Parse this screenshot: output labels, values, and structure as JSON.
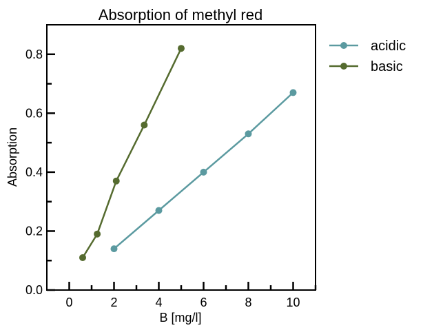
{
  "chart_data": {
    "type": "line",
    "title": "Absorption of methyl red",
    "xlabel": "B [mg/l]",
    "ylabel": "Absorption",
    "xlim": [
      -1.0,
      11.0
    ],
    "ylim": [
      0.0,
      0.9
    ],
    "xticks": [
      0,
      2,
      4,
      6,
      8,
      10
    ],
    "xtick_labels": [
      "0",
      "2",
      "4",
      "6",
      "8",
      "10"
    ],
    "yticks": [
      0.0,
      0.2,
      0.4,
      0.6,
      0.8
    ],
    "ytick_labels": [
      "0.0",
      "0.2",
      "0.4",
      "0.6",
      "0.8"
    ],
    "x_minor_ticks": [
      1,
      3,
      5,
      7,
      9,
      11
    ],
    "y_minor_ticks": [
      0.1,
      0.3,
      0.5,
      0.7
    ],
    "grid": false,
    "legend_position": "outside-right-top",
    "series": [
      {
        "name": "acidic",
        "color": "#5b9aa0",
        "marker": "circle",
        "x": [
          2,
          4,
          6,
          8,
          10
        ],
        "y": [
          0.14,
          0.27,
          0.4,
          0.53,
          0.67
        ]
      },
      {
        "name": "basic",
        "color": "#556b2f",
        "marker": "circle",
        "x": [
          0.6,
          1.25,
          2.1,
          3.35,
          5.0
        ],
        "y": [
          0.11,
          0.19,
          0.37,
          0.56,
          0.82
        ]
      }
    ]
  }
}
